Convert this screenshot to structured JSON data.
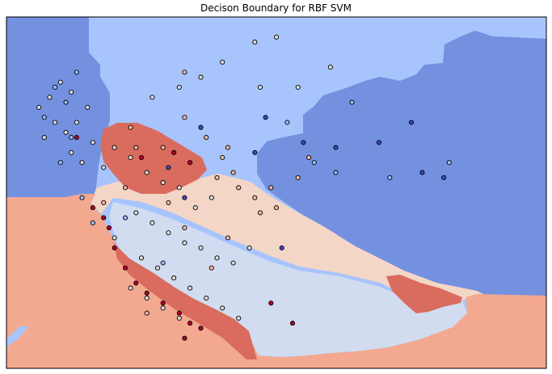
{
  "chart_data": {
    "type": "scatter",
    "title": "Decison Boundary for RBF SVM",
    "xlabel": "",
    "ylabel": "",
    "grid": false,
    "legend": "none",
    "axis_ticks": "none",
    "xlim": [
      0,
      10
    ],
    "ylim": [
      0,
      7
    ],
    "colormap": "coolwarm",
    "colors": {
      "region_dark_blue": "#7491e0",
      "region_light_blue": "#a8c4fd",
      "region_pale_blue": "#d1dcf0",
      "region_pale_red": "#f4d6c7",
      "region_salmon": "#f3a890",
      "region_dark_red": "#d96c5e",
      "point_dark_blue": "#3b4cc0",
      "point_light_blue": "#9bbcff",
      "point_pale_blue": "#dddcdc",
      "point_pale_red": "#f6b89d",
      "point_dark_red": "#b40426"
    },
    "series": [
      {
        "class": "dark_blue",
        "color": "#3b4cc0",
        "points": [
          [
            5.5,
            4.5
          ],
          [
            6.1,
            4.4
          ],
          [
            6.9,
            4.5
          ],
          [
            7.5,
            4.9
          ],
          [
            7.7,
            3.9
          ],
          [
            8.1,
            3.8
          ],
          [
            3.6,
            4.8
          ],
          [
            4.6,
            4.3
          ],
          [
            3.3,
            3.4
          ],
          [
            3.0,
            4.0
          ],
          [
            5.1,
            2.4
          ],
          [
            4.8,
            5.0
          ]
        ]
      },
      {
        "class": "light_blue",
        "color": "#9bbcff",
        "points": [
          [
            0.9,
            5.6
          ],
          [
            0.7,
            5.0
          ],
          [
            1.2,
            4.6
          ],
          [
            1.3,
            5.9
          ],
          [
            1.0,
            4.1
          ],
          [
            1.4,
            3.4
          ],
          [
            1.1,
            5.3
          ],
          [
            5.2,
            4.9
          ],
          [
            5.7,
            4.1
          ],
          [
            6.4,
            5.3
          ],
          [
            6.1,
            3.9
          ],
          [
            7.1,
            3.8
          ],
          [
            8.2,
            4.1
          ],
          [
            1.6,
            2.9
          ],
          [
            2.2,
            3.0
          ],
          [
            3.1,
            4.3
          ],
          [
            2.9,
            2.1
          ]
        ]
      },
      {
        "class": "pale_grey",
        "color": "#dddcdc",
        "points": [
          [
            0.6,
            5.2
          ],
          [
            0.8,
            5.4
          ],
          [
            1.0,
            5.7
          ],
          [
            1.2,
            5.5
          ],
          [
            0.9,
            4.9
          ],
          [
            1.1,
            4.7
          ],
          [
            1.3,
            4.9
          ],
          [
            1.5,
            5.2
          ],
          [
            0.7,
            4.6
          ],
          [
            1.2,
            4.3
          ],
          [
            1.4,
            4.1
          ],
          [
            1.6,
            4.5
          ],
          [
            1.8,
            4.0
          ],
          [
            2.0,
            4.4
          ],
          [
            2.3,
            4.2
          ],
          [
            2.6,
            3.9
          ],
          [
            2.9,
            3.7
          ],
          [
            3.2,
            3.6
          ],
          [
            3.5,
            3.2
          ],
          [
            3.8,
            3.4
          ],
          [
            2.4,
            3.1
          ],
          [
            2.7,
            2.9
          ],
          [
            3.0,
            2.7
          ],
          [
            3.3,
            2.5
          ],
          [
            3.6,
            2.4
          ],
          [
            3.9,
            2.2
          ],
          [
            4.2,
            2.1
          ],
          [
            4.5,
            2.4
          ],
          [
            2.5,
            2.2
          ],
          [
            2.8,
            2.0
          ],
          [
            3.1,
            1.8
          ],
          [
            3.4,
            1.6
          ],
          [
            3.7,
            1.4
          ],
          [
            4.0,
            1.2
          ],
          [
            4.3,
            1.0
          ],
          [
            2.3,
            1.6
          ],
          [
            2.6,
            1.4
          ],
          [
            2.9,
            1.2
          ],
          [
            3.2,
            1.0
          ],
          [
            2.0,
            2.6
          ],
          [
            4.6,
            6.5
          ],
          [
            5.0,
            6.6
          ],
          [
            6.0,
            6.0
          ],
          [
            4.0,
            6.1
          ],
          [
            3.6,
            5.8
          ],
          [
            3.2,
            5.6
          ],
          [
            2.7,
            5.4
          ],
          [
            4.7,
            5.6
          ],
          [
            5.4,
            5.6
          ]
        ]
      },
      {
        "class": "pale_red",
        "color": "#f6b89d",
        "points": [
          [
            3.3,
            5.0
          ],
          [
            3.7,
            4.6
          ],
          [
            4.0,
            4.2
          ],
          [
            3.9,
            3.8
          ],
          [
            4.3,
            3.6
          ],
          [
            4.6,
            3.4
          ],
          [
            4.2,
            3.9
          ],
          [
            4.9,
            3.6
          ],
          [
            4.7,
            3.1
          ],
          [
            5.0,
            3.2
          ],
          [
            5.4,
            3.8
          ],
          [
            5.6,
            4.2
          ],
          [
            3.0,
            3.3
          ],
          [
            2.3,
            4.8
          ],
          [
            2.9,
            4.4
          ],
          [
            1.8,
            3.3
          ],
          [
            3.8,
            2.0
          ],
          [
            3.3,
            2.8
          ],
          [
            4.1,
            2.6
          ],
          [
            2.6,
            1.1
          ],
          [
            4.1,
            4.4
          ],
          [
            2.4,
            4.4
          ],
          [
            2.2,
            3.6
          ],
          [
            3.3,
            5.9
          ]
        ]
      },
      {
        "class": "dark_red",
        "color": "#b40426",
        "points": [
          [
            1.3,
            4.6
          ],
          [
            1.6,
            3.2
          ],
          [
            1.8,
            3.0
          ],
          [
            1.9,
            2.8
          ],
          [
            2.0,
            2.4
          ],
          [
            2.2,
            2.0
          ],
          [
            2.4,
            1.7
          ],
          [
            2.6,
            1.5
          ],
          [
            2.9,
            1.3
          ],
          [
            3.2,
            1.1
          ],
          [
            3.4,
            0.9
          ],
          [
            3.6,
            0.8
          ],
          [
            3.3,
            0.6
          ],
          [
            4.9,
            1.3
          ],
          [
            5.3,
            0.9
          ],
          [
            2.5,
            4.2
          ],
          [
            3.1,
            4.3
          ],
          [
            3.4,
            4.1
          ]
        ]
      }
    ]
  }
}
